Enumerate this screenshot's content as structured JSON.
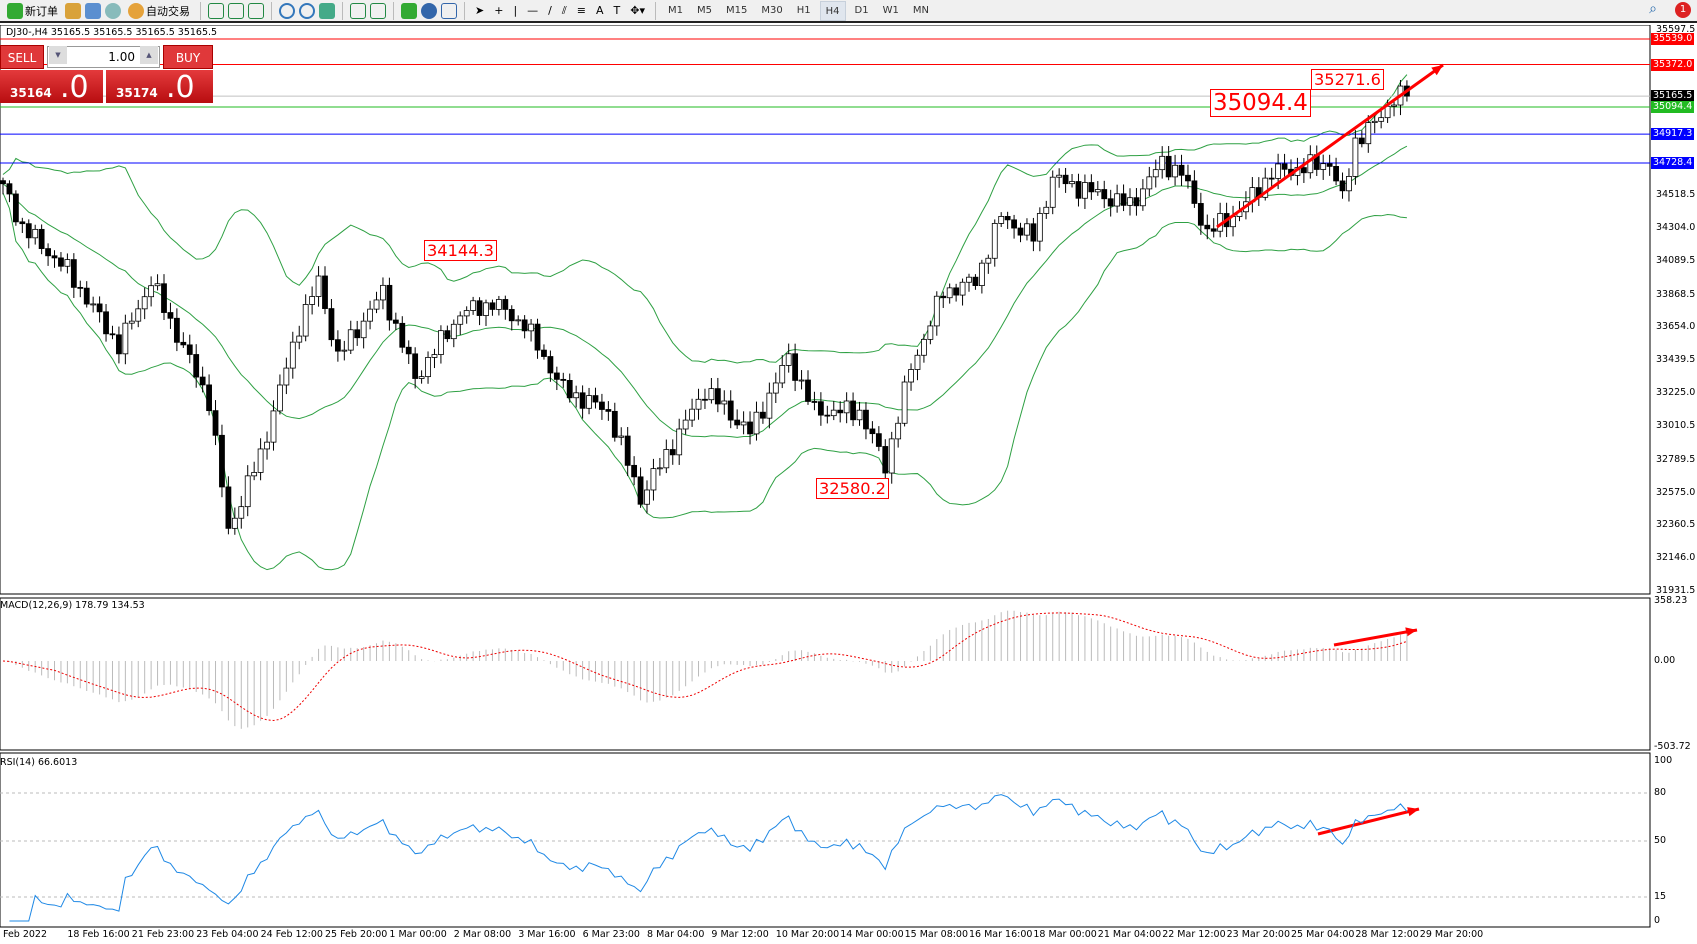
{
  "toolbar": {
    "new_order": "新订单",
    "auto_trading": "自动交易",
    "timeframes": [
      "M1",
      "M5",
      "M15",
      "M30",
      "H1",
      "H4",
      "D1",
      "W1",
      "MN"
    ],
    "active_timeframe": "H4",
    "notification_count": "1"
  },
  "chart": {
    "header": "DJ30-,H4  35165.5 35165.5 35165.5 35165.5",
    "price_anchors": [
      [
        0,
        34593
      ],
      [
        3,
        34310
      ],
      [
        10,
        34027
      ],
      [
        18,
        33531
      ],
      [
        23,
        33955
      ],
      [
        32,
        33177
      ],
      [
        35,
        32328
      ],
      [
        40,
        32823
      ],
      [
        46,
        33672
      ],
      [
        49,
        33955
      ],
      [
        52,
        33460
      ],
      [
        59,
        33885
      ],
      [
        64,
        33319
      ],
      [
        71,
        33743
      ],
      [
        76,
        33814
      ],
      [
        81,
        33672
      ],
      [
        87,
        33248
      ],
      [
        94,
        33106
      ],
      [
        99,
        32540
      ],
      [
        104,
        32893
      ],
      [
        109,
        33248
      ],
      [
        116,
        32965
      ],
      [
        122,
        33460
      ],
      [
        126,
        33106
      ],
      [
        133,
        33106
      ],
      [
        137,
        32752
      ],
      [
        141,
        33389
      ],
      [
        146,
        33885
      ],
      [
        151,
        33955
      ],
      [
        155,
        34380
      ],
      [
        160,
        34239
      ],
      [
        163,
        34628
      ],
      [
        168,
        34557
      ],
      [
        175,
        34451
      ],
      [
        180,
        34734
      ],
      [
        183,
        34663
      ],
      [
        187,
        34274
      ],
      [
        192,
        34416
      ],
      [
        197,
        34663
      ],
      [
        202,
        34699
      ],
      [
        206,
        34734
      ],
      [
        208,
        34487
      ],
      [
        210,
        34875
      ],
      [
        213,
        34982
      ],
      [
        216,
        35159
      ],
      [
        218,
        35165.5
      ]
    ],
    "price_axis": [
      "35597.5",
      "34518.5",
      "34304.0",
      "34089.5",
      "33868.5",
      "33654.0",
      "33439.5",
      "33225.0",
      "33010.5",
      "32789.5",
      "32575.0",
      "32360.5",
      "32146.0",
      "31931.5"
    ],
    "levels": [
      {
        "price": "35539.0",
        "color": "#ff0000"
      },
      {
        "price": "35372.0",
        "color": "#ff0000"
      },
      {
        "price": "35165.5",
        "color": "#000000"
      },
      {
        "price": "35094.4",
        "color": "#22bb22"
      },
      {
        "price": "34917.3",
        "color": "#0000ff"
      },
      {
        "price": "34728.4",
        "color": "#0000ff"
      }
    ],
    "annotations": [
      "35271.6",
      "35094.4",
      "34144.3",
      "32580.2"
    ],
    "time_axis": [
      "Feb 2022",
      "18 Feb 16:00",
      "21 Feb 23:00",
      "23 Feb 04:00",
      "24 Feb 12:00",
      "25 Feb 20:00",
      "1 Mar 00:00",
      "2 Mar 08:00",
      "3 Mar 16:00",
      "6 Mar 23:00",
      "8 Mar 04:00",
      "9 Mar 12:00",
      "10 Mar 20:00",
      "14 Mar 00:00",
      "15 Mar 08:00",
      "16 Mar 16:00",
      "18 Mar 00:00",
      "21 Mar 04:00",
      "22 Mar 12:00",
      "23 Mar 20:00",
      "25 Mar 04:00",
      "28 Mar 12:00",
      "29 Mar 20:00"
    ],
    "band_color": "#2ea043"
  },
  "oneclick": {
    "sell": "SELL",
    "buy": "BUY",
    "lot": "1.00",
    "sell_price": "35164",
    "sell_frac": ".0",
    "buy_price": "35174",
    "buy_frac": ".0"
  },
  "macd": {
    "label": "MACD(12,26,9) 178.79 134.53",
    "axis": [
      "358.23",
      "0.00",
      "-503.72"
    ]
  },
  "rsi": {
    "label": "RSI(14) 66.6013",
    "axis": [
      "100",
      "80",
      "50",
      "15",
      "0"
    ]
  }
}
